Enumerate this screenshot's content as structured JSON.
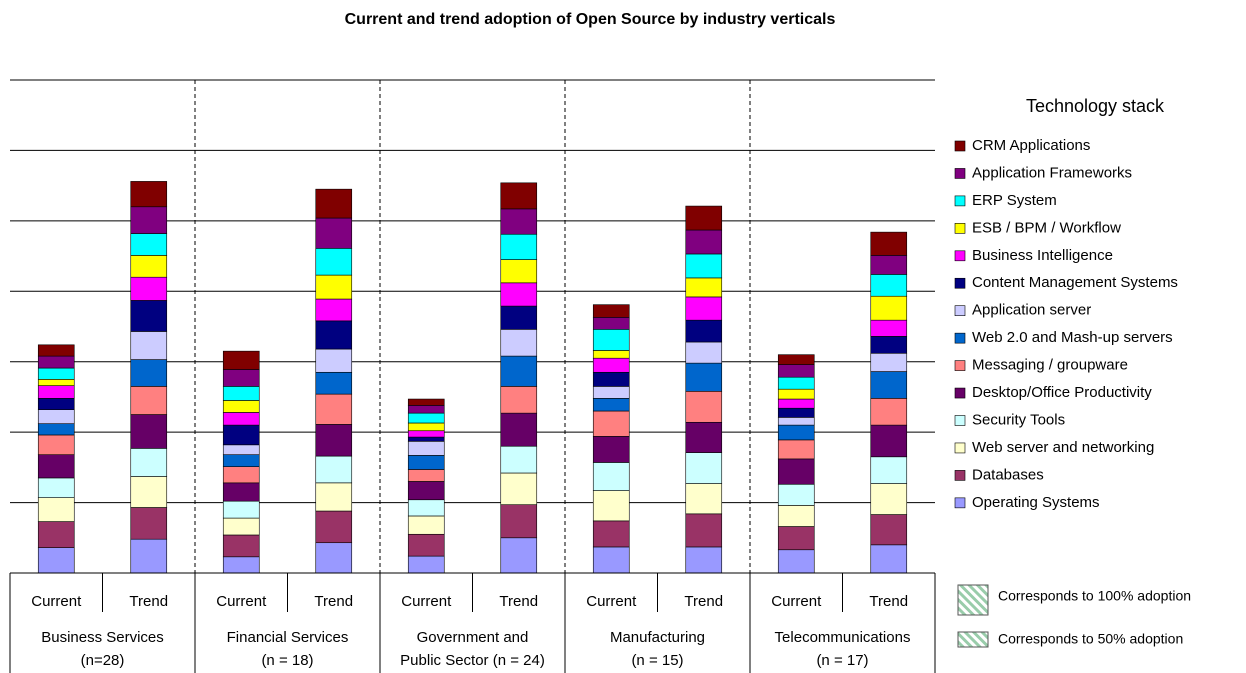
{
  "chart_data": {
    "type": "stacked-bar",
    "title": "Current and trend adoption of Open Source by industry verticals",
    "legend_title": "Technology stack",
    "categories": [
      "Current",
      "Trend",
      "Current",
      "Trend",
      "Current",
      "Trend",
      "Current",
      "Trend",
      "Current",
      "Trend"
    ],
    "groups": [
      [
        "Business Services",
        "(n=28)"
      ],
      [
        "Financial Services",
        "(n = 18)"
      ],
      [
        "Government and",
        "Public Sector (n = 24)"
      ],
      [
        "Manufacturing",
        "(n = 15)"
      ],
      [
        "Telecommunications",
        "(n = 17)"
      ]
    ],
    "ylim": [
      0,
      7
    ],
    "yticks": [
      0,
      1,
      2,
      3,
      4,
      5,
      6,
      7
    ],
    "grid": true,
    "series": [
      {
        "name": "Operating Systems",
        "color": "#9999ff",
        "values": [
          0.36,
          0.48,
          0.23,
          0.43,
          0.24,
          0.5,
          0.37,
          0.37,
          0.33,
          0.4
        ]
      },
      {
        "name": "Databases",
        "color": "#993366",
        "values": [
          0.37,
          0.45,
          0.31,
          0.45,
          0.31,
          0.47,
          0.37,
          0.47,
          0.33,
          0.43
        ]
      },
      {
        "name": "Web server and networking",
        "color": "#ffffcc",
        "values": [
          0.34,
          0.44,
          0.24,
          0.4,
          0.26,
          0.45,
          0.43,
          0.43,
          0.3,
          0.44
        ]
      },
      {
        "name": "Security Tools",
        "color": "#ccffff",
        "values": [
          0.28,
          0.4,
          0.24,
          0.38,
          0.23,
          0.38,
          0.4,
          0.44,
          0.3,
          0.38
        ]
      },
      {
        "name": "Desktop/Office Productivity",
        "color": "#660066",
        "values": [
          0.33,
          0.48,
          0.26,
          0.45,
          0.26,
          0.47,
          0.37,
          0.43,
          0.36,
          0.45
        ]
      },
      {
        "name": "Messaging / groupware",
        "color": "#ff8080",
        "values": [
          0.28,
          0.4,
          0.23,
          0.43,
          0.17,
          0.38,
          0.36,
          0.44,
          0.27,
          0.38
        ]
      },
      {
        "name": "Web 2.0 and Mash-up servers",
        "color": "#0066cc",
        "values": [
          0.16,
          0.38,
          0.17,
          0.31,
          0.2,
          0.43,
          0.18,
          0.4,
          0.21,
          0.38
        ]
      },
      {
        "name": "Application server",
        "color": "#ccccff",
        "values": [
          0.2,
          0.4,
          0.14,
          0.33,
          0.2,
          0.38,
          0.17,
          0.3,
          0.11,
          0.26
        ]
      },
      {
        "name": "Content Management Systems",
        "color": "#000080",
        "values": [
          0.16,
          0.44,
          0.28,
          0.4,
          0.06,
          0.33,
          0.2,
          0.31,
          0.13,
          0.24
        ]
      },
      {
        "name": "Business Intelligence",
        "color": "#ff00ff",
        "values": [
          0.18,
          0.33,
          0.18,
          0.31,
          0.09,
          0.33,
          0.2,
          0.33,
          0.13,
          0.23
        ]
      },
      {
        "name": "ESB / BPM / Workflow",
        "color": "#ffff00",
        "values": [
          0.09,
          0.31,
          0.17,
          0.34,
          0.11,
          0.33,
          0.11,
          0.27,
          0.14,
          0.34
        ]
      },
      {
        "name": "ERP System",
        "color": "#00ffff",
        "values": [
          0.16,
          0.31,
          0.2,
          0.38,
          0.14,
          0.36,
          0.3,
          0.34,
          0.17,
          0.31
        ]
      },
      {
        "name": "Application Frameworks",
        "color": "#800080",
        "values": [
          0.17,
          0.38,
          0.24,
          0.43,
          0.11,
          0.36,
          0.17,
          0.34,
          0.18,
          0.27
        ]
      },
      {
        "name": "CRM Applications",
        "color": "#800000",
        "values": [
          0.16,
          0.36,
          0.26,
          0.41,
          0.09,
          0.37,
          0.18,
          0.34,
          0.14,
          0.33
        ]
      }
    ],
    "notes": [
      "Corresponds to 100% adoption",
      "Corresponds to 50% adoption"
    ]
  }
}
